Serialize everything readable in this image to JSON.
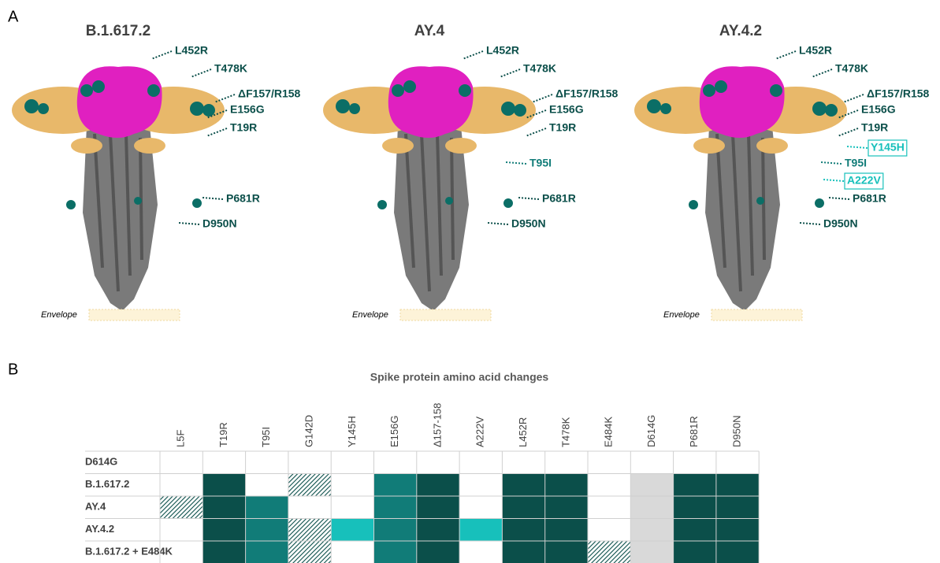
{
  "panel_a": {
    "label": "A",
    "structures": [
      {
        "title": "B.1.617.2",
        "envelope": "Envelope",
        "labels": [
          {
            "text": "L452R",
            "color": "#0b4f4a",
            "boxed": false
          },
          {
            "text": "T478K",
            "color": "#0b4f4a",
            "boxed": false
          },
          {
            "text": "ΔF157/R158",
            "color": "#0b4f4a",
            "boxed": false
          },
          {
            "text": "E156G",
            "color": "#0b4f4a",
            "boxed": false
          },
          {
            "text": "T19R",
            "color": "#0b4f4a",
            "boxed": false
          },
          {
            "text": "P681R",
            "color": "#0b4f4a",
            "boxed": false
          },
          {
            "text": "D950N",
            "color": "#0b4f4a",
            "boxed": false
          }
        ]
      },
      {
        "title": "AY.4",
        "envelope": "Envelope",
        "labels": [
          {
            "text": "L452R",
            "color": "#0b4f4a",
            "boxed": false
          },
          {
            "text": "T478K",
            "color": "#0b4f4a",
            "boxed": false
          },
          {
            "text": "ΔF157/R158",
            "color": "#0b4f4a",
            "boxed": false
          },
          {
            "text": "E156G",
            "color": "#0b4f4a",
            "boxed": false
          },
          {
            "text": "T19R",
            "color": "#0b4f4a",
            "boxed": false
          },
          {
            "text": "T95I",
            "color": "#117c78",
            "boxed": false
          },
          {
            "text": "P681R",
            "color": "#0b4f4a",
            "boxed": false
          },
          {
            "text": "D950N",
            "color": "#0b4f4a",
            "boxed": false
          }
        ]
      },
      {
        "title": "AY.4.2",
        "envelope": "Envelope",
        "labels": [
          {
            "text": "L452R",
            "color": "#0b4f4a",
            "boxed": false
          },
          {
            "text": "T478K",
            "color": "#0b4f4a",
            "boxed": false
          },
          {
            "text": "ΔF157/R158",
            "color": "#0b4f4a",
            "boxed": false
          },
          {
            "text": "E156G",
            "color": "#0b4f4a",
            "boxed": false
          },
          {
            "text": "T19R",
            "color": "#0b4f4a",
            "boxed": false
          },
          {
            "text": "Y145H",
            "color": "#17c0bb",
            "boxed": true
          },
          {
            "text": "T95I",
            "color": "#117c78",
            "boxed": false
          },
          {
            "text": "A222V",
            "color": "#17c0bb",
            "boxed": true
          },
          {
            "text": "P681R",
            "color": "#0b4f4a",
            "boxed": false
          },
          {
            "text": "D950N",
            "color": "#0b4f4a",
            "boxed": false
          }
        ]
      }
    ]
  },
  "panel_b": {
    "label": "B",
    "title": "Spike protein amino acid changes",
    "columns": [
      "L5F",
      "T19R",
      "T95I",
      "G142D",
      "Y145H",
      "E156G",
      "Δ157-158",
      "A222V",
      "L452R",
      "T478K",
      "E484K",
      "D614G",
      "P681R",
      "D950N"
    ],
    "rows": [
      {
        "name": "D614G",
        "cells": [
          null,
          null,
          null,
          null,
          null,
          null,
          null,
          null,
          null,
          null,
          null,
          null,
          null,
          null
        ]
      },
      {
        "name": "B.1.617.2",
        "cells": [
          null,
          "#0b4f4a",
          null,
          {
            "color": "#0b4f4a",
            "hatched": true
          },
          null,
          "#117c78",
          "#0b4f4a",
          null,
          "#0b4f4a",
          "#0b4f4a",
          null,
          "#d9d9d9",
          "#0b4f4a",
          "#0b4f4a"
        ]
      },
      {
        "name": "AY.4",
        "cells": [
          {
            "color": "#0b4f4a",
            "hatched": true
          },
          "#0b4f4a",
          "#117c78",
          null,
          null,
          "#117c78",
          "#0b4f4a",
          null,
          "#0b4f4a",
          "#0b4f4a",
          null,
          "#d9d9d9",
          "#0b4f4a",
          "#0b4f4a"
        ]
      },
      {
        "name": "AY.4.2",
        "cells": [
          null,
          "#0b4f4a",
          "#117c78",
          {
            "color": "#0b4f4a",
            "hatched": true
          },
          "#17c0bb",
          "#117c78",
          "#0b4f4a",
          "#17c0bb",
          "#0b4f4a",
          "#0b4f4a",
          null,
          "#d9d9d9",
          "#0b4f4a",
          "#0b4f4a"
        ]
      },
      {
        "name": "B.1.617.2 + E484K",
        "cells": [
          null,
          "#0b4f4a",
          "#117c78",
          {
            "color": "#0b4f4a",
            "hatched": true
          },
          null,
          "#117c78",
          "#0b4f4a",
          null,
          "#0b4f4a",
          "#0b4f4a",
          {
            "color": "#0b4f4a",
            "hatched": true
          },
          "#d9d9d9",
          "#0b4f4a",
          "#0b4f4a"
        ]
      }
    ]
  }
}
